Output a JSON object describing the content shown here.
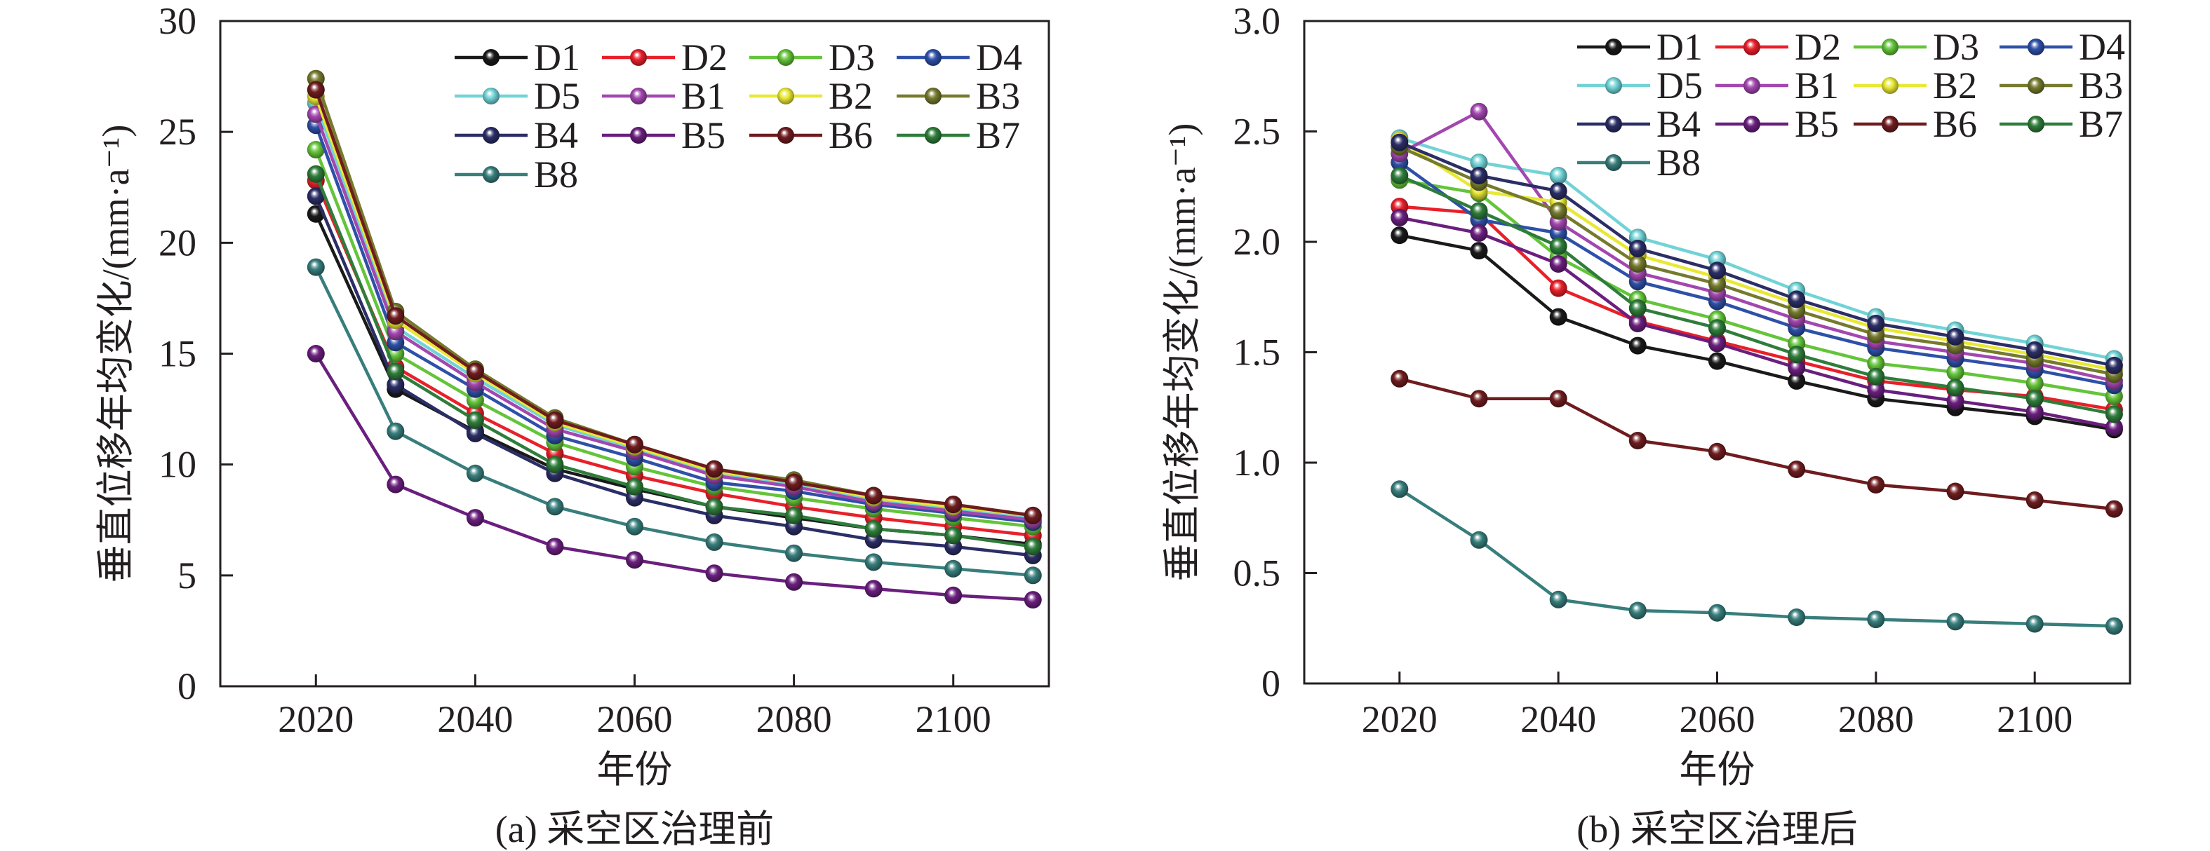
{
  "chart_data": [
    {
      "type": "line",
      "title": "(a) 采空区治理前",
      "xlabel": "年份",
      "ylabel": "垂直位移年均变化/(mm·a⁻¹)",
      "x": [
        2020,
        2030,
        2040,
        2050,
        2060,
        2070,
        2080,
        2090,
        2100,
        2110
      ],
      "xlim": [
        2008,
        2112
      ],
      "ylim": [
        0,
        30
      ],
      "xticks": [
        2020,
        2040,
        2060,
        2080,
        2100
      ],
      "xtick_labels": [
        "2020",
        "2040",
        "2060",
        "2080",
        "2100"
      ],
      "yticks": [
        0,
        5,
        10,
        15,
        20,
        25,
        30
      ],
      "ytick_labels": [
        "0",
        "5",
        "10",
        "15",
        "20",
        "25",
        "30"
      ],
      "grid": false,
      "legend": "top-right",
      "marker": "sphere",
      "series": [
        {
          "name": "D1",
          "color": "#1a1a1a",
          "values": [
            21.3,
            13.4,
            11.5,
            9.8,
            8.9,
            8.1,
            7.6,
            7.1,
            6.8,
            6.4
          ]
        },
        {
          "name": "D2",
          "color": "#e8202a",
          "values": [
            22.8,
            14.4,
            12.3,
            10.5,
            9.5,
            8.7,
            8.1,
            7.6,
            7.2,
            6.8
          ]
        },
        {
          "name": "D3",
          "color": "#64c43a",
          "values": [
            24.2,
            15.0,
            12.9,
            11.0,
            9.9,
            9.0,
            8.5,
            8.0,
            7.6,
            7.2
          ]
        },
        {
          "name": "D4",
          "color": "#2e50a8",
          "values": [
            25.3,
            15.5,
            13.4,
            11.3,
            10.3,
            9.2,
            8.8,
            8.2,
            7.8,
            7.4
          ]
        },
        {
          "name": "D5",
          "color": "#72d3d6",
          "values": [
            26.3,
            16.2,
            13.9,
            11.8,
            10.7,
            9.6,
            9.1,
            8.4,
            8.0,
            7.6
          ]
        },
        {
          "name": "B1",
          "color": "#a347b0",
          "values": [
            25.8,
            16.0,
            13.7,
            11.6,
            10.6,
            9.5,
            9.0,
            8.3,
            7.9,
            7.5
          ]
        },
        {
          "name": "B2",
          "color": "#e8e835",
          "values": [
            26.6,
            16.5,
            14.1,
            11.9,
            10.8,
            9.7,
            9.2,
            8.5,
            8.1,
            7.7
          ]
        },
        {
          "name": "B3",
          "color": "#757a2d",
          "values": [
            27.4,
            16.9,
            14.3,
            12.1,
            10.9,
            9.8,
            9.3,
            8.6,
            8.2,
            7.7
          ]
        },
        {
          "name": "B4",
          "color": "#2b2e66",
          "values": [
            22.1,
            13.6,
            11.4,
            9.6,
            8.5,
            7.7,
            7.2,
            6.6,
            6.3,
            5.9
          ]
        },
        {
          "name": "B5",
          "color": "#6a1f7e",
          "values": [
            15.0,
            9.1,
            7.6,
            6.3,
            5.7,
            5.1,
            4.7,
            4.4,
            4.1,
            3.9
          ]
        },
        {
          "name": "B6",
          "color": "#6f1c1f",
          "values": [
            26.9,
            16.7,
            14.2,
            12.0,
            10.9,
            9.8,
            9.2,
            8.6,
            8.2,
            7.7
          ]
        },
        {
          "name": "B7",
          "color": "#2f7d3b",
          "values": [
            23.1,
            14.2,
            12.0,
            10.0,
            9.0,
            8.1,
            7.7,
            7.1,
            6.8,
            6.3
          ]
        },
        {
          "name": "B8",
          "color": "#377e7c",
          "values": [
            18.9,
            11.5,
            9.6,
            8.1,
            7.2,
            6.5,
            6.0,
            5.6,
            5.3,
            5.0
          ]
        }
      ]
    },
    {
      "type": "line",
      "title": "(b) 采空区治理后",
      "xlabel": "年份",
      "ylabel": "垂直位移年均变化/(mm·a⁻¹)",
      "x": [
        2020,
        2030,
        2040,
        2050,
        2060,
        2070,
        2080,
        2090,
        2100,
        2110
      ],
      "xlim": [
        2008,
        2112
      ],
      "ylim": [
        0,
        3.0
      ],
      "xticks": [
        2020,
        2040,
        2060,
        2080,
        2100
      ],
      "xtick_labels": [
        "2020",
        "2040",
        "2060",
        "2080",
        "2100"
      ],
      "yticks": [
        0,
        0.5,
        1.0,
        1.5,
        2.0,
        2.5,
        3.0
      ],
      "ytick_labels": [
        "0",
        "0.5",
        "1.0",
        "1.5",
        "2.0",
        "2.5",
        "3.0"
      ],
      "grid": false,
      "legend": "top-right",
      "marker": "sphere",
      "series": [
        {
          "name": "D1",
          "color": "#1a1a1a",
          "values": [
            2.03,
            1.96,
            1.66,
            1.53,
            1.46,
            1.37,
            1.29,
            1.25,
            1.21,
            1.15
          ]
        },
        {
          "name": "D2",
          "color": "#e8202a",
          "values": [
            2.16,
            2.13,
            1.79,
            1.64,
            1.55,
            1.46,
            1.37,
            1.33,
            1.3,
            1.24
          ]
        },
        {
          "name": "D3",
          "color": "#64c43a",
          "values": [
            2.28,
            2.22,
            1.93,
            1.74,
            1.65,
            1.54,
            1.45,
            1.41,
            1.36,
            1.3
          ]
        },
        {
          "name": "D4",
          "color": "#2e50a8",
          "values": [
            2.36,
            2.1,
            2.04,
            1.82,
            1.73,
            1.61,
            1.52,
            1.47,
            1.42,
            1.35
          ]
        },
        {
          "name": "D5",
          "color": "#72d3d6",
          "values": [
            2.47,
            2.36,
            2.3,
            2.02,
            1.92,
            1.78,
            1.66,
            1.6,
            1.54,
            1.47
          ]
        },
        {
          "name": "B1",
          "color": "#a347b0",
          "values": [
            2.4,
            2.59,
            2.09,
            1.86,
            1.77,
            1.65,
            1.55,
            1.5,
            1.45,
            1.37
          ]
        },
        {
          "name": "B2",
          "color": "#e8e835",
          "values": [
            2.46,
            2.23,
            2.18,
            1.94,
            1.84,
            1.72,
            1.61,
            1.55,
            1.49,
            1.42
          ]
        },
        {
          "name": "B3",
          "color": "#757a2d",
          "values": [
            2.43,
            2.27,
            2.14,
            1.9,
            1.81,
            1.69,
            1.58,
            1.53,
            1.47,
            1.4
          ]
        },
        {
          "name": "B4",
          "color": "#2b2e66",
          "values": [
            2.45,
            2.3,
            2.23,
            1.97,
            1.87,
            1.74,
            1.63,
            1.57,
            1.51,
            1.44
          ]
        },
        {
          "name": "B5",
          "color": "#6a1f7e",
          "values": [
            2.11,
            2.04,
            1.9,
            1.63,
            1.54,
            1.43,
            1.33,
            1.28,
            1.23,
            1.16
          ]
        },
        {
          "name": "B6",
          "color": "#6f1c1f",
          "values": [
            1.38,
            1.29,
            1.29,
            1.1,
            1.05,
            0.97,
            0.9,
            0.87,
            0.83,
            0.79
          ]
        },
        {
          "name": "B7",
          "color": "#2f7d3b",
          "values": [
            2.3,
            2.14,
            1.98,
            1.7,
            1.61,
            1.49,
            1.39,
            1.34,
            1.29,
            1.22
          ]
        },
        {
          "name": "B8",
          "color": "#377e7c",
          "values": [
            0.88,
            0.65,
            0.38,
            0.33,
            0.32,
            0.3,
            0.29,
            0.28,
            0.27,
            0.26
          ]
        }
      ]
    }
  ]
}
